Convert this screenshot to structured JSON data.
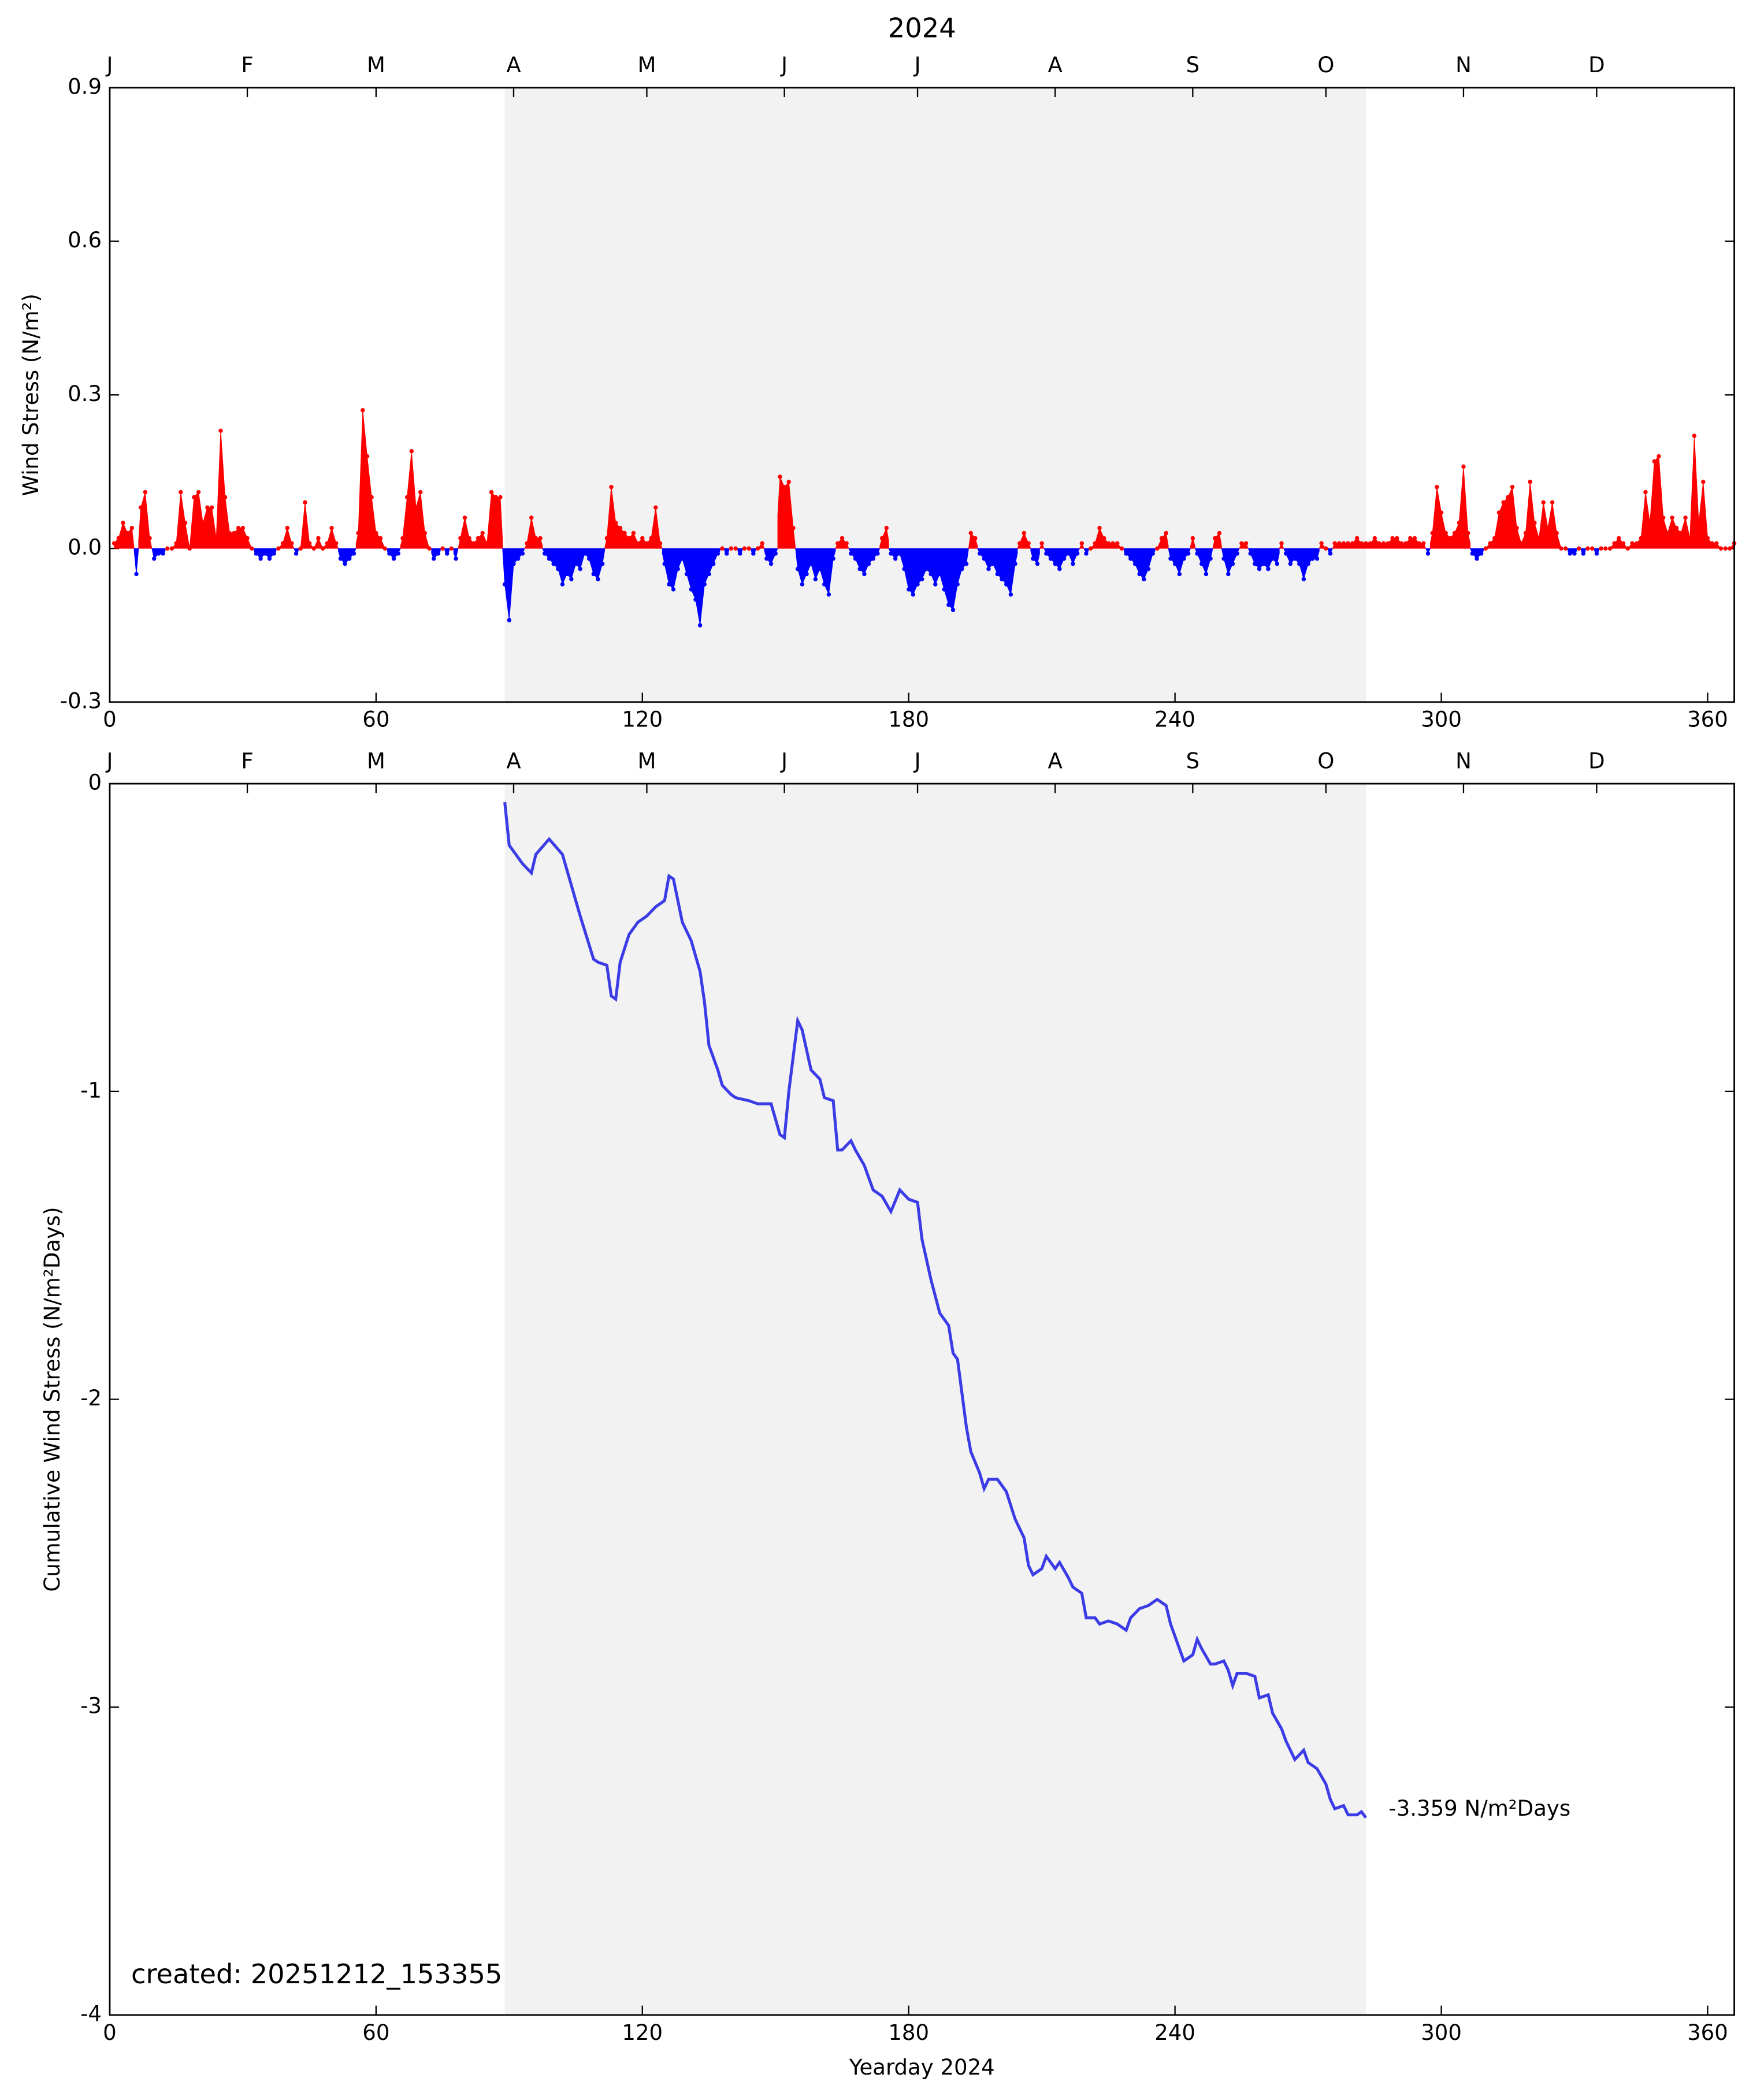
{
  "chart_data": [
    {
      "type": "area",
      "title": "2024",
      "y_label": "Wind Stress (N/m²)",
      "positive_color": "#ff0000",
      "negative_color": "#0000ff",
      "shade": [
        89,
        283
      ],
      "shade_color": "#f2f2f2",
      "xlim": [
        0,
        366
      ],
      "ylim": [
        -0.3,
        0.9
      ],
      "xticks": [
        0,
        60,
        120,
        180,
        240,
        300,
        360
      ],
      "yticks": [
        -0.3,
        {
          "value": 0,
          "label": "0.0"
        },
        0.3,
        0.6,
        0.9
      ],
      "month_ticks": [
        {
          "value": 0,
          "label": "J"
        },
        {
          "value": 31,
          "label": "F"
        },
        {
          "value": 60,
          "label": "M"
        },
        {
          "value": 91,
          "label": "A"
        },
        {
          "value": 121,
          "label": "M"
        },
        {
          "value": 152,
          "label": "J"
        },
        {
          "value": 182,
          "label": "J"
        },
        {
          "value": 213,
          "label": "A"
        },
        {
          "value": 244,
          "label": "S"
        },
        {
          "value": 274,
          "label": "O"
        },
        {
          "value": 305,
          "label": "N"
        },
        {
          "value": 335,
          "label": "D"
        }
      ],
      "x": [
        1,
        2,
        3,
        4,
        5,
        6,
        7,
        8,
        9,
        10,
        11,
        12,
        13,
        14,
        15,
        16,
        17,
        18,
        19,
        20,
        21,
        22,
        23,
        24,
        25,
        26,
        27,
        28,
        29,
        30,
        31,
        32,
        33,
        34,
        35,
        36,
        37,
        38,
        39,
        40,
        41,
        42,
        43,
        44,
        45,
        46,
        47,
        48,
        49,
        50,
        51,
        52,
        53,
        54,
        55,
        56,
        57,
        58,
        59,
        60,
        61,
        62,
        63,
        64,
        65,
        66,
        67,
        68,
        69,
        70,
        71,
        72,
        73,
        74,
        75,
        76,
        77,
        78,
        79,
        80,
        81,
        82,
        83,
        84,
        85,
        86,
        87,
        88,
        89,
        90,
        91,
        92,
        93,
        94,
        95,
        96,
        97,
        98,
        99,
        100,
        101,
        102,
        103,
        104,
        105,
        106,
        107,
        108,
        109,
        110,
        111,
        112,
        113,
        114,
        115,
        116,
        117,
        118,
        119,
        120,
        121,
        122,
        123,
        124,
        125,
        126,
        127,
        128,
        129,
        130,
        131,
        132,
        133,
        134,
        135,
        136,
        137,
        138,
        139,
        140,
        141,
        142,
        143,
        144,
        145,
        146,
        147,
        148,
        149,
        150,
        151,
        152,
        153,
        154,
        155,
        156,
        157,
        158,
        159,
        160,
        161,
        162,
        163,
        164,
        165,
        166,
        167,
        168,
        169,
        170,
        171,
        172,
        173,
        174,
        175,
        176,
        177,
        178,
        179,
        180,
        181,
        182,
        183,
        184,
        185,
        186,
        187,
        188,
        189,
        190,
        191,
        192,
        193,
        194,
        195,
        196,
        197,
        198,
        199,
        200,
        201,
        202,
        203,
        204,
        205,
        206,
        207,
        208,
        209,
        210,
        211,
        212,
        213,
        214,
        215,
        216,
        217,
        218,
        219,
        220,
        221,
        222,
        223,
        224,
        225,
        226,
        227,
        228,
        229,
        230,
        231,
        232,
        233,
        234,
        235,
        236,
        237,
        238,
        239,
        240,
        241,
        242,
        243,
        244,
        245,
        246,
        247,
        248,
        249,
        250,
        251,
        252,
        253,
        254,
        255,
        256,
        257,
        258,
        259,
        260,
        261,
        262,
        263,
        264,
        265,
        266,
        267,
        268,
        269,
        270,
        271,
        272,
        273,
        274,
        275,
        276,
        277,
        278,
        279,
        280,
        281,
        282,
        283,
        284,
        285,
        286,
        287,
        288,
        289,
        290,
        291,
        292,
        293,
        294,
        295,
        296,
        297,
        298,
        299,
        300,
        301,
        302,
        303,
        304,
        305,
        306,
        307,
        308,
        309,
        310,
        311,
        312,
        313,
        314,
        315,
        316,
        317,
        318,
        319,
        320,
        321,
        322,
        323,
        324,
        325,
        326,
        327,
        328,
        329,
        330,
        331,
        332,
        333,
        334,
        335,
        336,
        337,
        338,
        339,
        340,
        341,
        342,
        343,
        344,
        345,
        346,
        347,
        348,
        349,
        350,
        351,
        352,
        353,
        354,
        355,
        356,
        357,
        358,
        359,
        360,
        361,
        362,
        363,
        364,
        365,
        366
      ],
      "values": [
        0.01,
        0.02,
        0.05,
        0.03,
        0.04,
        -0.05,
        0.08,
        0.11,
        0.02,
        -0.02,
        -0.01,
        -0.01,
        0,
        0,
        0.01,
        0.11,
        0.05,
        0,
        0.1,
        0.11,
        0.05,
        0.08,
        0.08,
        0.02,
        0.23,
        0.1,
        0.03,
        0.03,
        0.04,
        0.04,
        0.02,
        0,
        -0.01,
        -0.02,
        -0.01,
        -0.02,
        -0.01,
        0,
        0.01,
        0.04,
        0.01,
        -0.01,
        0,
        0.09,
        0.01,
        0,
        0.02,
        0,
        0.01,
        0.04,
        0.01,
        -0.02,
        -0.03,
        -0.02,
        -0.01,
        0.03,
        0.27,
        0.18,
        0.1,
        0.03,
        0.02,
        0,
        -0.01,
        -0.02,
        -0.01,
        0.02,
        0.1,
        0.19,
        0.08,
        0.11,
        0.03,
        0,
        -0.02,
        -0.01,
        0,
        -0.01,
        0,
        -0.02,
        0.02,
        0.06,
        0.02,
        0.01,
        0.02,
        0.03,
        0.01,
        0.11,
        0.1,
        0.1,
        -0.07,
        -0.14,
        -0.03,
        -0.02,
        -0.01,
        0.01,
        0.06,
        0.02,
        0.02,
        -0.01,
        -0.02,
        -0.03,
        -0.04,
        -0.07,
        -0.05,
        -0.06,
        -0.03,
        -0.04,
        -0.01,
        -0.02,
        -0.05,
        -0.06,
        -0.03,
        0.02,
        0.12,
        0.05,
        0.04,
        0.03,
        0.02,
        0.03,
        0.01,
        0.02,
        0.01,
        0.02,
        0.08,
        0.01,
        -0.03,
        -0.07,
        -0.08,
        -0.04,
        -0.02,
        -0.05,
        -0.08,
        -0.1,
        -0.15,
        -0.07,
        -0.05,
        -0.03,
        -0.01,
        0,
        -0.01,
        0,
        0,
        -0.01,
        0,
        0,
        -0.01,
        0,
        0.01,
        -0.02,
        -0.03,
        -0.01,
        0.14,
        0.12,
        0.13,
        0.04,
        -0.04,
        -0.07,
        -0.05,
        -0.03,
        -0.06,
        -0.04,
        -0.07,
        -0.09,
        -0.02,
        0.01,
        0.02,
        0.01,
        -0.01,
        -0.02,
        -0.04,
        -0.05,
        -0.03,
        -0.02,
        -0.01,
        0.02,
        0.04,
        -0.01,
        -0.02,
        -0.01,
        -0.04,
        -0.08,
        -0.09,
        -0.07,
        -0.06,
        -0.04,
        -0.05,
        -0.07,
        -0.05,
        -0.08,
        -0.11,
        -0.12,
        -0.07,
        -0.04,
        -0.03,
        0.03,
        0.02,
        -0.01,
        -0.02,
        -0.04,
        -0.03,
        -0.05,
        -0.06,
        -0.07,
        -0.09,
        -0.03,
        0.01,
        0.03,
        0.01,
        -0.02,
        -0.03,
        0.01,
        -0.01,
        -0.02,
        -0.03,
        -0.04,
        -0.02,
        -0.01,
        -0.03,
        -0.01,
        0.01,
        -0.01,
        0,
        0.01,
        0.04,
        0.02,
        0.01,
        0.01,
        0.01,
        0,
        -0.01,
        -0.02,
        -0.03,
        -0.05,
        -0.06,
        -0.04,
        -0.01,
        0,
        0.02,
        0.03,
        -0.02,
        -0.03,
        -0.05,
        -0.02,
        -0.01,
        0.02,
        -0.01,
        -0.03,
        -0.05,
        -0.02,
        0.02,
        0.03,
        -0.02,
        -0.05,
        -0.03,
        -0.01,
        0.01,
        0.01,
        -0.01,
        -0.03,
        -0.04,
        -0.03,
        -0.04,
        -0.02,
        -0.03,
        0.01,
        -0.01,
        -0.03,
        -0.02,
        -0.03,
        -0.06,
        -0.03,
        -0.02,
        -0.02,
        0.01,
        0,
        -0.01,
        0.01,
        0.01,
        0.01,
        0.01,
        0.01,
        0.02,
        0.01,
        0.01,
        0.01,
        0.02,
        0.01,
        0.01,
        0.01,
        0.02,
        0.02,
        0.01,
        0.01,
        0.02,
        0.02,
        0.01,
        0.01,
        -0.01,
        0.03,
        0.12,
        0.07,
        0.03,
        0.02,
        0.03,
        0.05,
        0.16,
        0.03,
        -0.01,
        -0.02,
        -0.01,
        0,
        0.01,
        0.02,
        0.07,
        0.09,
        0.1,
        0.12,
        0.04,
        0.01,
        0.03,
        0.13,
        0.05,
        0.02,
        0.09,
        0.04,
        0.09,
        0.03,
        0,
        0,
        -0.01,
        -0.01,
        0,
        -0.01,
        0,
        0,
        -0.01,
        0,
        0,
        0,
        0.01,
        0.02,
        0.01,
        0,
        0.01,
        0.01,
        0.02,
        0.11,
        0.05,
        0.17,
        0.18,
        0.06,
        0.03,
        0.06,
        0.04,
        0.03,
        0.06,
        0.02,
        0.22,
        0.05,
        0.13,
        0.02,
        0.01,
        0.01,
        0,
        0,
        0,
        0.01
      ]
    },
    {
      "type": "line",
      "y_label": "Cumulative Wind Stress (N/m²Days)",
      "x_label": "Yearday 2024",
      "annotation": "-3.359 N/m²Days",
      "footnote": "created: 20251212_153355",
      "color": "#3c3ce6",
      "shade": [
        89,
        283
      ],
      "shade_color": "#f2f2f2",
      "xlim": [
        0,
        366
      ],
      "ylim": [
        -4,
        0
      ],
      "xticks": [
        0,
        60,
        120,
        180,
        240,
        300,
        360
      ],
      "yticks": [
        0,
        -1,
        -2,
        -3,
        -4
      ],
      "month_ticks": [
        {
          "value": 0,
          "label": "J"
        },
        {
          "value": 31,
          "label": "F"
        },
        {
          "value": 60,
          "label": "M"
        },
        {
          "value": 91,
          "label": "A"
        },
        {
          "value": 121,
          "label": "M"
        },
        {
          "value": 152,
          "label": "J"
        },
        {
          "value": 182,
          "label": "J"
        },
        {
          "value": 213,
          "label": "A"
        },
        {
          "value": 244,
          "label": "S"
        },
        {
          "value": 274,
          "label": "O"
        },
        {
          "value": 305,
          "label": "N"
        },
        {
          "value": 335,
          "label": "D"
        }
      ],
      "x": [
        89,
        90,
        93,
        95,
        96,
        99,
        102,
        104,
        106,
        109,
        110,
        112,
        113,
        114,
        115,
        117,
        119,
        121,
        123,
        125,
        126,
        127,
        129,
        131,
        133,
        134,
        135,
        137,
        138,
        140,
        141,
        144,
        146,
        149,
        151,
        152,
        153,
        155,
        156,
        158,
        160,
        161,
        163,
        164,
        165,
        167,
        168,
        170,
        172,
        174,
        176,
        178,
        180,
        182,
        183,
        185,
        187,
        189,
        190,
        191,
        193,
        194,
        196,
        197,
        198,
        200,
        202,
        204,
        206,
        207,
        208,
        210,
        211,
        213,
        214,
        216,
        217,
        219,
        220,
        222,
        223,
        225,
        227,
        229,
        230,
        232,
        234,
        236,
        238,
        239,
        241,
        242,
        244,
        245,
        246,
        248,
        249,
        251,
        252,
        253,
        254,
        256,
        258,
        259,
        261,
        262,
        264,
        265,
        267,
        269,
        270,
        272,
        274,
        275,
        276,
        278,
        279,
        281,
        282,
        283
      ],
      "values": [
        -0.06,
        -0.2,
        -0.26,
        -0.29,
        -0.23,
        -0.18,
        -0.23,
        -0.33,
        -0.43,
        -0.57,
        -0.58,
        -0.59,
        -0.69,
        -0.7,
        -0.58,
        -0.49,
        -0.45,
        -0.43,
        -0.4,
        -0.38,
        -0.3,
        -0.31,
        -0.45,
        -0.51,
        -0.61,
        -0.71,
        -0.85,
        -0.93,
        -0.98,
        -1.01,
        -1.02,
        -1.03,
        -1.04,
        -1.04,
        -1.14,
        -1.15,
        -1.0,
        -0.77,
        -0.8,
        -0.93,
        -0.96,
        -1.02,
        -1.03,
        -1.19,
        -1.19,
        -1.16,
        -1.19,
        -1.24,
        -1.32,
        -1.34,
        -1.39,
        -1.32,
        -1.35,
        -1.36,
        -1.48,
        -1.61,
        -1.72,
        -1.76,
        -1.85,
        -1.87,
        -2.09,
        -2.17,
        -2.24,
        -2.29,
        -2.26,
        -2.26,
        -2.3,
        -2.39,
        -2.45,
        -2.54,
        -2.57,
        -2.55,
        -2.51,
        -2.55,
        -2.53,
        -2.58,
        -2.61,
        -2.63,
        -2.71,
        -2.71,
        -2.73,
        -2.72,
        -2.73,
        -2.75,
        -2.71,
        -2.68,
        -2.67,
        -2.65,
        -2.67,
        -2.73,
        -2.81,
        -2.85,
        -2.83,
        -2.78,
        -2.81,
        -2.86,
        -2.86,
        -2.85,
        -2.88,
        -2.93,
        -2.89,
        -2.89,
        -2.9,
        -2.97,
        -2.96,
        -3.02,
        -3.07,
        -3.11,
        -3.17,
        -3.14,
        -3.18,
        -3.2,
        -3.25,
        -3.3,
        -3.33,
        -3.32,
        -3.35,
        -3.35,
        -3.34,
        -3.359
      ]
    }
  ]
}
